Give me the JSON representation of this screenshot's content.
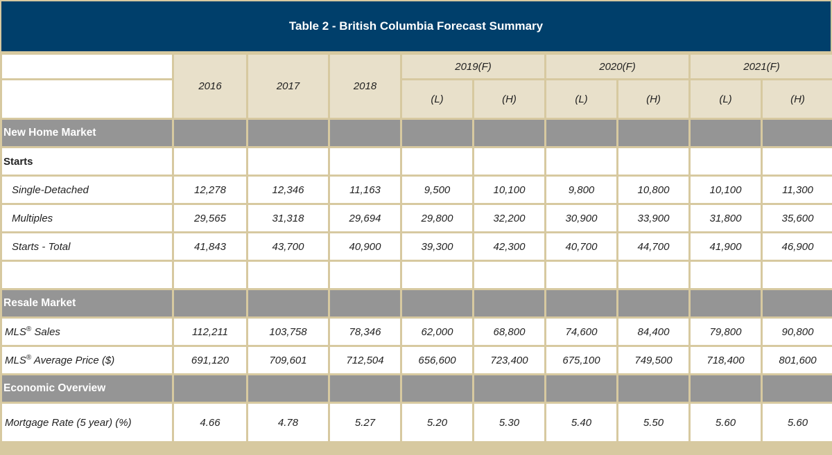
{
  "title": "Table 2 - British Columbia Forecast Summary",
  "header": {
    "years": [
      "2016",
      "2017",
      "2018"
    ],
    "forecast_years": [
      "2019(F)",
      "2020(F)",
      "2021(F)"
    ],
    "low": "(L)",
    "high": "(H)"
  },
  "sections": {
    "new_home": "New Home Market",
    "starts": "Starts",
    "resale": "Resale Market",
    "economic": "Economic Overview"
  },
  "rows": {
    "single_detached": {
      "label": "Single-Detached",
      "values": [
        "12,278",
        "12,346",
        "11,163",
        "9,500",
        "10,100",
        "9,800",
        "10,800",
        "10,100",
        "11,300"
      ]
    },
    "multiples": {
      "label": "Multiples",
      "values": [
        "29,565",
        "31,318",
        "29,694",
        "29,800",
        "32,200",
        "30,900",
        "33,900",
        "31,800",
        "35,600"
      ]
    },
    "starts_total": {
      "label": "Starts - Total",
      "values": [
        "41,843",
        "43,700",
        "40,900",
        "39,300",
        "42,300",
        "40,700",
        "44,700",
        "41,900",
        "46,900"
      ]
    },
    "mls_sales": {
      "label_prefix": "MLS",
      "label_sup": "®",
      "label_suffix": " Sales",
      "values": [
        "112,211",
        "103,758",
        "78,346",
        "62,000",
        "68,800",
        "74,600",
        "84,400",
        "79,800",
        "90,800"
      ]
    },
    "mls_price": {
      "label_prefix": "MLS",
      "label_sup": "®",
      "label_suffix": " Average Price ($)",
      "values": [
        "691,120",
        "709,601",
        "712,504",
        "656,600",
        "723,400",
        "675,100",
        "749,500",
        "718,400",
        "801,600"
      ]
    },
    "mortgage": {
      "label": "Mortgage Rate (5 year) (%)",
      "values": [
        "4.66",
        "4.78",
        "5.27",
        "5.20",
        "5.30",
        "5.40",
        "5.50",
        "5.60",
        "5.60"
      ]
    }
  }
}
